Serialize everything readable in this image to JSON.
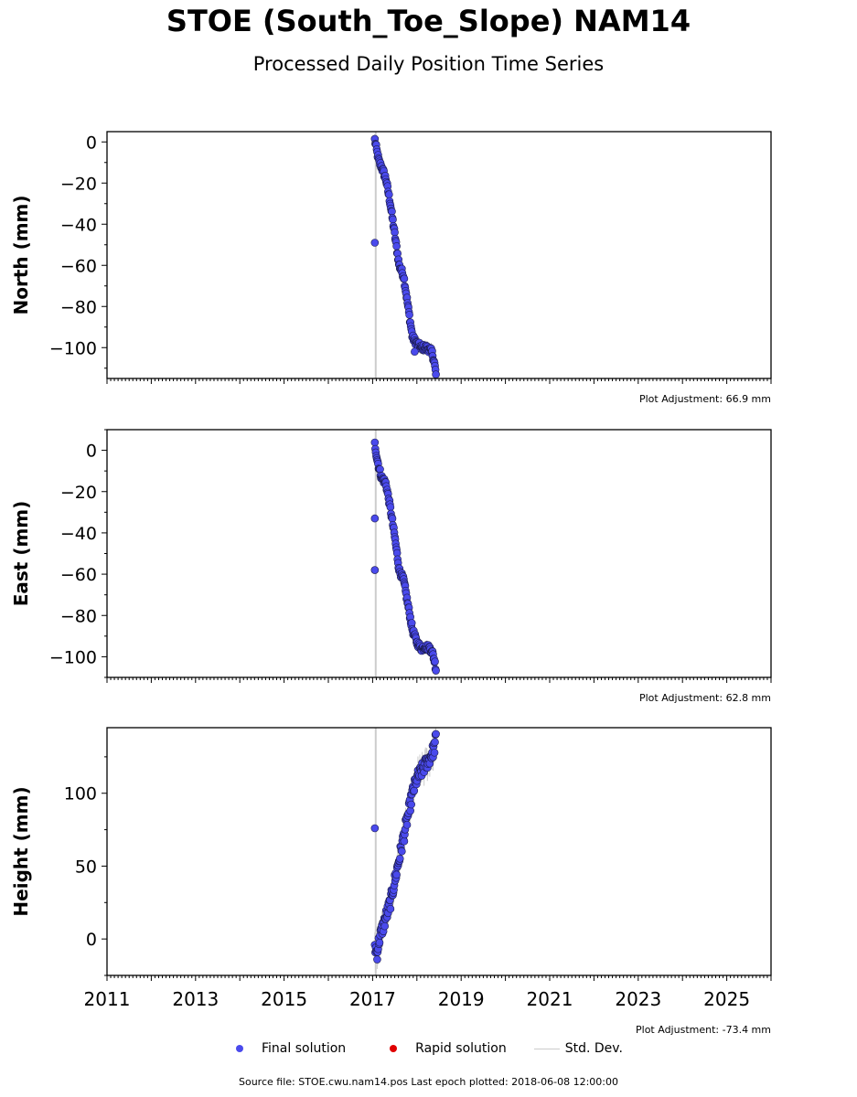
{
  "title": "STOE (South_Toe_Slope) NAM14",
  "subtitle": "Processed Daily Position Time Series",
  "legend": {
    "final_label": "Final solution",
    "rapid_label": "Rapid solution",
    "std_label": "Std. Dev.",
    "final_color": "#4a4aec",
    "rapid_color": "#e00000",
    "std_color": "#cccccc"
  },
  "footer": "Source file: STOE.cwu.nam14.pos  Last epoch plotted: 2018-06-08 12:00:00",
  "chart_data": [
    {
      "type": "scatter",
      "ylabel": "North (mm)",
      "adjustment": "Plot Adjustment: 66.9 mm",
      "xlim": [
        2011,
        2026
      ],
      "ylim": [
        -115,
        5
      ],
      "yticks": [
        0,
        -20,
        -40,
        -60,
        -80,
        -100
      ],
      "ytick_labels": [
        "0",
        "−20",
        "−40",
        "−60",
        "−80",
        "−100"
      ],
      "series": [
        {
          "x": [
            2017.05,
            2017.1,
            2017.15,
            2017.2,
            2017.3,
            2017.4,
            2017.5,
            2017.6,
            2017.7,
            2017.8,
            2017.9,
            2018.0,
            2018.1,
            2018.2,
            2018.3,
            2018.35,
            2018.4,
            2018.43
          ],
          "y": [
            1,
            -5,
            -10,
            -12,
            -18,
            -30,
            -45,
            -60,
            -65,
            -80,
            -95,
            -98,
            -100,
            -100,
            -101,
            -103,
            -108,
            -113
          ]
        }
      ],
      "outliers": {
        "x": [
          2017.05,
          2017.95
        ],
        "y": [
          -49,
          -102
        ]
      }
    },
    {
      "type": "scatter",
      "ylabel": "East (mm)",
      "adjustment": "Plot Adjustment: 62.8 mm",
      "xlim": [
        2011,
        2026
      ],
      "ylim": [
        -110,
        10
      ],
      "yticks": [
        0,
        -20,
        -40,
        -60,
        -80,
        -100
      ],
      "ytick_labels": [
        "0",
        "−20",
        "−40",
        "−60",
        "−80",
        "−100"
      ],
      "series": [
        {
          "x": [
            2017.05,
            2017.1,
            2017.15,
            2017.2,
            2017.3,
            2017.4,
            2017.5,
            2017.6,
            2017.7,
            2017.8,
            2017.9,
            2018.0,
            2018.1,
            2018.2,
            2018.3,
            2018.35,
            2018.4,
            2018.43
          ],
          "y": [
            3,
            -4,
            -9,
            -13,
            -16,
            -28,
            -42,
            -58,
            -63,
            -75,
            -87,
            -93,
            -96,
            -95,
            -96,
            -98,
            -102,
            -106
          ]
        }
      ],
      "outliers": {
        "x": [
          2017.05,
          2017.05
        ],
        "y": [
          -33,
          -58
        ]
      }
    },
    {
      "type": "scatter",
      "ylabel": "Height (mm)",
      "adjustment": "Plot Adjustment: -73.4 mm",
      "xlim": [
        2011,
        2026
      ],
      "ylim": [
        -25,
        145
      ],
      "yticks": [
        0,
        50,
        100
      ],
      "ytick_labels": [
        "0",
        "50",
        "100"
      ],
      "xticks": [
        2011,
        2013,
        2015,
        2017,
        2019,
        2021,
        2023,
        2025
      ],
      "xtick_labels": [
        "2011",
        "2013",
        "2015",
        "2017",
        "2019",
        "2021",
        "2023",
        "2025"
      ],
      "series": [
        {
          "x": [
            2017.05,
            2017.1,
            2017.15,
            2017.2,
            2017.3,
            2017.4,
            2017.5,
            2017.6,
            2017.7,
            2017.8,
            2017.9,
            2018.0,
            2018.1,
            2018.2,
            2018.3,
            2018.35,
            2018.4,
            2018.43
          ],
          "y": [
            -5,
            -10,
            0,
            5,
            15,
            25,
            40,
            55,
            70,
            85,
            100,
            110,
            115,
            120,
            125,
            128,
            132,
            138
          ]
        }
      ],
      "outliers": {
        "x": [
          2017.05
        ],
        "y": [
          76
        ]
      }
    }
  ]
}
